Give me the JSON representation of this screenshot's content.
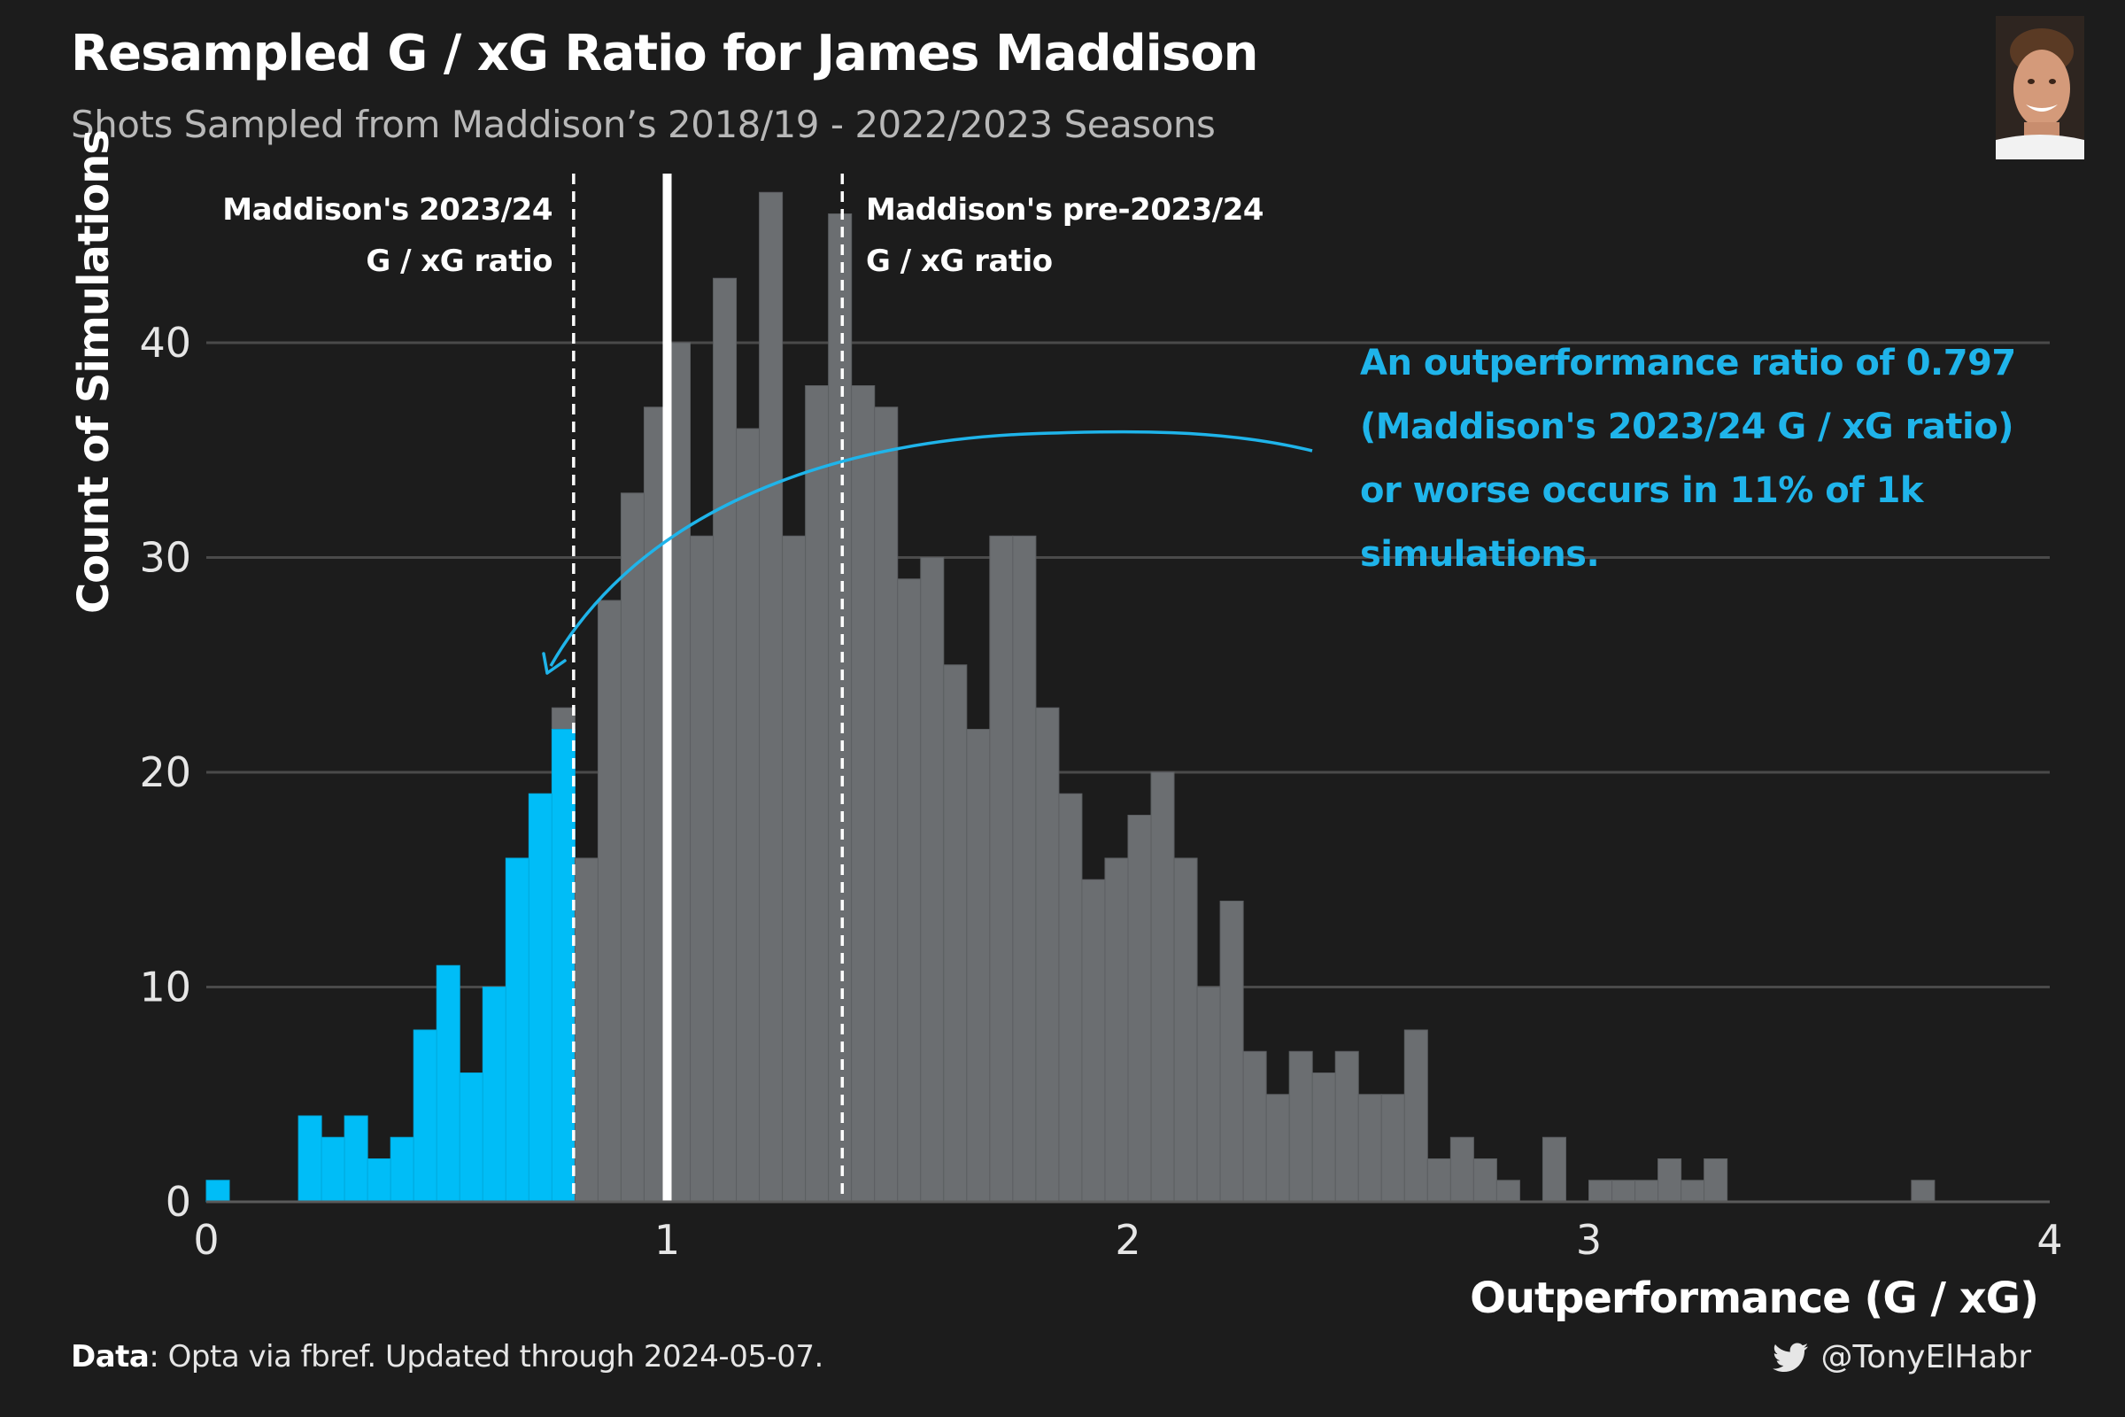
{
  "header": {
    "title": "Resampled G / xG Ratio for James Maddison",
    "subtitle": "Shots Sampled from Maddison’s 2018/19 - 2022/2023 Seasons"
  },
  "footer": {
    "data_label": "Data",
    "data_text": ": Opta via fbref. Updated through 2024-05-07.",
    "handle": "@TonyElHabr",
    "handle_icon": "twitter-icon"
  },
  "annotation": {
    "text_line1": "An outperformance ratio of 0.797",
    "text_line2": "(Maddison's 2023/24 G / xG ratio)",
    "text_line3": "or worse occurs in 11% of 1k",
    "text_line4": "simulations."
  },
  "reference_lines": {
    "current": {
      "x": 0.797,
      "label_line1": "Maddison's 2023/24",
      "label_line2": "G / xG ratio",
      "style": "dashed"
    },
    "pre": {
      "x": 1.38,
      "label_line1": "Maddison's pre-2023/24",
      "label_line2": "G / xG ratio",
      "style": "dashed"
    },
    "parity": {
      "x": 1.0,
      "style": "solid"
    }
  },
  "colors": {
    "background": "#1c1c1c",
    "highlight": "#00bdf7",
    "bar": "#6b6e71",
    "annotation": "#1fb4ea",
    "grid": "#4a4a4a"
  },
  "chart_data": {
    "type": "bar",
    "title": "Resampled G / xG Ratio for James Maddison",
    "xlabel": "Outperformance (G / xG)",
    "ylabel": "Count of Simulations",
    "xlim": [
      0,
      4
    ],
    "ylim": [
      0,
      46
    ],
    "bin_width": 0.05,
    "x_ticks": [
      0,
      1,
      2,
      3,
      4
    ],
    "y_ticks": [
      0,
      10,
      20,
      30,
      40
    ],
    "grid": "horizontal",
    "highlight_threshold": 0.797,
    "bins": [
      {
        "x": 0.0,
        "count": 1
      },
      {
        "x": 0.05,
        "count": 0
      },
      {
        "x": 0.1,
        "count": 0
      },
      {
        "x": 0.15,
        "count": 0
      },
      {
        "x": 0.2,
        "count": 4
      },
      {
        "x": 0.25,
        "count": 3
      },
      {
        "x": 0.3,
        "count": 4
      },
      {
        "x": 0.35,
        "count": 2
      },
      {
        "x": 0.4,
        "count": 3
      },
      {
        "x": 0.45,
        "count": 8
      },
      {
        "x": 0.5,
        "count": 11
      },
      {
        "x": 0.55,
        "count": 6
      },
      {
        "x": 0.6,
        "count": 10
      },
      {
        "x": 0.65,
        "count": 16
      },
      {
        "x": 0.7,
        "count": 19
      },
      {
        "x": 0.75,
        "count": 22,
        "stack_top": 23
      },
      {
        "x": 0.8,
        "count": 16
      },
      {
        "x": 0.85,
        "count": 28
      },
      {
        "x": 0.9,
        "count": 33
      },
      {
        "x": 0.95,
        "count": 37
      },
      {
        "x": 1.0,
        "count": 40
      },
      {
        "x": 1.05,
        "count": 31
      },
      {
        "x": 1.1,
        "count": 43
      },
      {
        "x": 1.15,
        "count": 36
      },
      {
        "x": 1.2,
        "count": 47
      },
      {
        "x": 1.25,
        "count": 31
      },
      {
        "x": 1.3,
        "count": 38
      },
      {
        "x": 1.35,
        "count": 46
      },
      {
        "x": 1.4,
        "count": 38
      },
      {
        "x": 1.45,
        "count": 37
      },
      {
        "x": 1.5,
        "count": 29
      },
      {
        "x": 1.55,
        "count": 30
      },
      {
        "x": 1.6,
        "count": 25
      },
      {
        "x": 1.65,
        "count": 22
      },
      {
        "x": 1.7,
        "count": 31
      },
      {
        "x": 1.75,
        "count": 31
      },
      {
        "x": 1.8,
        "count": 23
      },
      {
        "x": 1.85,
        "count": 19
      },
      {
        "x": 1.9,
        "count": 15
      },
      {
        "x": 1.95,
        "count": 16
      },
      {
        "x": 2.0,
        "count": 18
      },
      {
        "x": 2.05,
        "count": 20
      },
      {
        "x": 2.1,
        "count": 16
      },
      {
        "x": 2.15,
        "count": 10
      },
      {
        "x": 2.2,
        "count": 14
      },
      {
        "x": 2.25,
        "count": 7
      },
      {
        "x": 2.3,
        "count": 5
      },
      {
        "x": 2.35,
        "count": 7
      },
      {
        "x": 2.4,
        "count": 6
      },
      {
        "x": 2.45,
        "count": 7
      },
      {
        "x": 2.5,
        "count": 5
      },
      {
        "x": 2.55,
        "count": 5
      },
      {
        "x": 2.6,
        "count": 8
      },
      {
        "x": 2.65,
        "count": 2
      },
      {
        "x": 2.7,
        "count": 3
      },
      {
        "x": 2.75,
        "count": 2
      },
      {
        "x": 2.8,
        "count": 1
      },
      {
        "x": 2.85,
        "count": 0
      },
      {
        "x": 2.9,
        "count": 3
      },
      {
        "x": 2.95,
        "count": 0
      },
      {
        "x": 3.0,
        "count": 1
      },
      {
        "x": 3.05,
        "count": 1
      },
      {
        "x": 3.1,
        "count": 1
      },
      {
        "x": 3.15,
        "count": 2
      },
      {
        "x": 3.2,
        "count": 1
      },
      {
        "x": 3.25,
        "count": 2
      },
      {
        "x": 3.3,
        "count": 0
      },
      {
        "x": 3.35,
        "count": 0
      },
      {
        "x": 3.4,
        "count": 0
      },
      {
        "x": 3.45,
        "count": 0
      },
      {
        "x": 3.5,
        "count": 0
      },
      {
        "x": 3.55,
        "count": 0
      },
      {
        "x": 3.6,
        "count": 0
      },
      {
        "x": 3.65,
        "count": 0
      },
      {
        "x": 3.7,
        "count": 1
      },
      {
        "x": 3.75,
        "count": 0
      }
    ]
  }
}
